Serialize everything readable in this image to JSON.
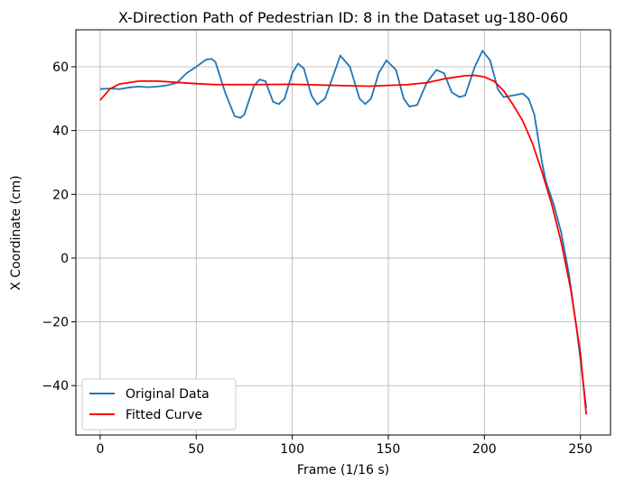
{
  "chart_data": {
    "type": "line",
    "title": "X-Direction Path of Pedestrian ID: 8 in the Dataset ug-180-060",
    "xlabel": "Frame (1/16 s)",
    "ylabel": "X Coordinate (cm)",
    "xlim": [
      -12.65,
      265.65
    ],
    "ylim": [
      -55.5,
      71.6
    ],
    "xticks": [
      0,
      50,
      100,
      150,
      200,
      250
    ],
    "yticks": [
      {
        "value": -40,
        "label": "−40"
      },
      {
        "value": -20,
        "label": "−20"
      },
      0,
      20,
      40,
      60
    ],
    "grid": true,
    "legend": "lower left",
    "series": [
      {
        "name": "Original Data",
        "color": "#1f77b4",
        "x": [
          0,
          5,
          10,
          15,
          20,
          25,
          30,
          35,
          40,
          45,
          50,
          55,
          58,
          60,
          65,
          70,
          73,
          75,
          80,
          83,
          86,
          90,
          93,
          96,
          100,
          103,
          106,
          110,
          113,
          117,
          120,
          125,
          130,
          135,
          138,
          141,
          145,
          149,
          154,
          158,
          161,
          165,
          170,
          175,
          179,
          183,
          187,
          190,
          195,
          199,
          203,
          207,
          210,
          215,
          220,
          223,
          226,
          230,
          232,
          236,
          240,
          244,
          248,
          250,
          253
        ],
        "values": [
          53,
          53.2,
          53,
          53.5,
          53.8,
          53.6,
          53.8,
          54.2,
          55,
          58,
          60,
          62.2,
          62.5,
          61.5,
          52,
          44.5,
          44,
          45,
          54,
          56,
          55.5,
          49,
          48.3,
          50,
          58,
          61,
          59.5,
          51,
          48.2,
          50,
          55,
          63.5,
          60,
          50,
          48.3,
          50,
          58,
          62,
          59,
          50,
          47.5,
          48,
          55,
          59,
          58,
          52,
          50.5,
          51,
          60,
          65,
          62,
          53,
          50.5,
          51,
          51.6,
          50,
          45,
          30,
          24,
          17,
          8,
          -5,
          -22,
          -32,
          -47
        ]
      },
      {
        "name": "Fitted Curve",
        "color": "#ff0000",
        "x": [
          0,
          5,
          10,
          20,
          30,
          40,
          50,
          60,
          80,
          100,
          120,
          140,
          160,
          170,
          180,
          190,
          195,
          200,
          205,
          210,
          215,
          220,
          225,
          230,
          235,
          240,
          245,
          250,
          253
        ],
        "values": [
          49.5,
          53,
          54.6,
          55.5,
          55.5,
          55.1,
          54.7,
          54.4,
          54.4,
          54.5,
          54.2,
          53.9,
          54.4,
          55,
          56.3,
          57.2,
          57.3,
          56.8,
          55.5,
          52.5,
          48,
          43,
          36,
          27,
          17,
          5,
          -10,
          -30,
          -49
        ]
      }
    ]
  }
}
